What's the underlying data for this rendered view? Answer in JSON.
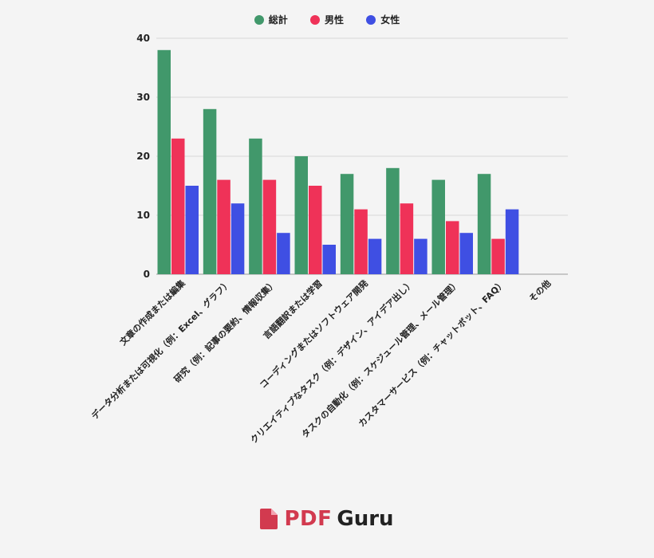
{
  "chart_data": {
    "type": "bar",
    "categories": [
      "文章の作成または編集",
      "データ分析または可視化（例：Excel、グラフ）",
      "研究（例：記事の要約、情報収集）",
      "言語翻訳または学習",
      "コーディングまたはソフトウェア開発",
      "クリエイティブなタスク（例：デザイン、アイデア出し）",
      "タスクの自動化（例：スケジュール管理、メール管理）",
      "カスタマーサービス（例：チャットボット、FAQ）",
      "その他"
    ],
    "series": [
      {
        "name": "総計",
        "color": "#41986b",
        "values": [
          38,
          28,
          23,
          20,
          17,
          18,
          16,
          17,
          0
        ]
      },
      {
        "name": "男性",
        "color": "#ef3258",
        "values": [
          23,
          16,
          16,
          15,
          11,
          12,
          9,
          6,
          0
        ]
      },
      {
        "name": "女性",
        "color": "#3f4fe3",
        "values": [
          15,
          12,
          7,
          5,
          6,
          6,
          7,
          11,
          0
        ]
      }
    ],
    "ylim": [
      0,
      40
    ],
    "yticks": [
      0,
      10,
      20,
      30,
      40
    ],
    "grid": true,
    "legend": "top-center",
    "xlabel": "",
    "ylabel": ""
  },
  "branding": {
    "pdf": "PDF",
    "guru": "Guru",
    "icon": "pdf-document-icon",
    "color": "#d23a4f"
  }
}
